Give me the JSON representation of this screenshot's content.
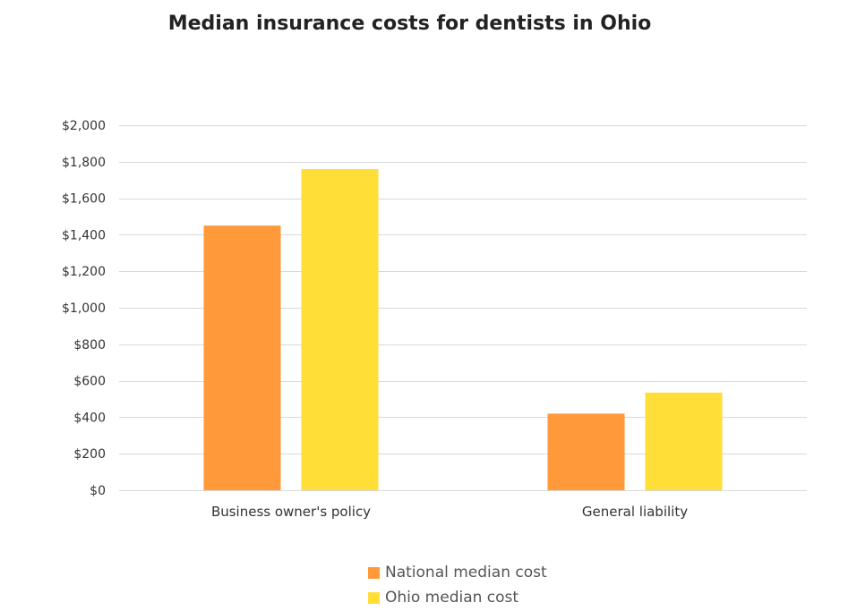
{
  "chart_data": {
    "type": "bar",
    "title": "Median insurance costs for dentists in Ohio",
    "categories": [
      "Business owner's policy",
      "General liability"
    ],
    "series": [
      {
        "name": "National median cost",
        "color": "#FF993A",
        "values": [
          1450,
          420
        ]
      },
      {
        "name": "Ohio median cost",
        "color": "#FFDE38",
        "values": [
          1760,
          535
        ]
      }
    ],
    "xlabel": "",
    "ylabel": "",
    "ylim": [
      0,
      2000
    ],
    "yticks": [
      0,
      200,
      400,
      600,
      800,
      1000,
      1200,
      1400,
      1600,
      1800,
      2000
    ],
    "ytick_labels": [
      "$0",
      "$200",
      "$400",
      "$600",
      "$800",
      "$1,000",
      "$1,200",
      "$1,400",
      "$1,600",
      "$1,800",
      "$2,000"
    ],
    "grid": true,
    "gridline_color": "#D9D9D9",
    "legend_position": "bottom-center"
  }
}
